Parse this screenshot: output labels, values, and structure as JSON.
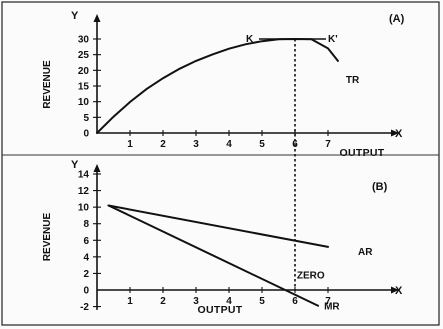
{
  "chart_data": [
    {
      "type": "line",
      "panel_label": "(A)",
      "y_axis_letter": "Y",
      "x_axis_letter": "X",
      "xlabel": "OUTPUT",
      "ylabel": "REVENUE",
      "xlim": [
        0,
        7.6
      ],
      "ylim": [
        0,
        33
      ],
      "x_ticks": [
        1,
        2,
        3,
        4,
        5,
        6,
        7
      ],
      "y_ticks": [
        0,
        5,
        10,
        15,
        20,
        25,
        30
      ],
      "series": [
        {
          "name": "TR",
          "x": [
            0,
            0.5,
            1,
            1.5,
            2,
            2.5,
            3,
            3.5,
            4,
            4.5,
            5,
            5.5,
            6,
            6.5,
            7,
            7.3
          ],
          "y": [
            0,
            5.2,
            9.9,
            14,
            17.5,
            20.5,
            23,
            25.1,
            26.9,
            28.3,
            29.3,
            29.9,
            30,
            29.9,
            27,
            23
          ]
        }
      ],
      "annotations": [
        {
          "text": "K",
          "x": 5.0,
          "y": 30
        },
        {
          "text": "K'",
          "x": 7.0,
          "y": 30
        }
      ],
      "reference_lines": [
        {
          "orientation": "vertical",
          "x": 6,
          "style": "dotted"
        }
      ],
      "grid": false
    },
    {
      "type": "line",
      "panel_label": "(B)",
      "y_axis_letter": "Y",
      "x_axis_letter": "X",
      "xlabel": "OUTPUT",
      "ylabel": "REVENUE",
      "xlim": [
        0,
        7.6
      ],
      "ylim": [
        -2.5,
        15
      ],
      "x_ticks": [
        1,
        2,
        3,
        4,
        5,
        6,
        7
      ],
      "y_ticks": [
        -2,
        0,
        2,
        4,
        6,
        8,
        10,
        12,
        14
      ],
      "y_tick_labels": [
        "-2",
        "0",
        "2",
        "4",
        "6",
        "8",
        "10",
        "12",
        "14"
      ],
      "series": [
        {
          "name": "AR",
          "x": [
            0.35,
            7.0
          ],
          "y": [
            10.2,
            5.2
          ]
        },
        {
          "name": "MR",
          "x": [
            0.35,
            6.7
          ],
          "y": [
            10.2,
            -1.9
          ]
        }
      ],
      "annotations": [
        {
          "text": "ZERO",
          "x": 6.3,
          "y": 1.0
        }
      ],
      "grid": false
    }
  ]
}
